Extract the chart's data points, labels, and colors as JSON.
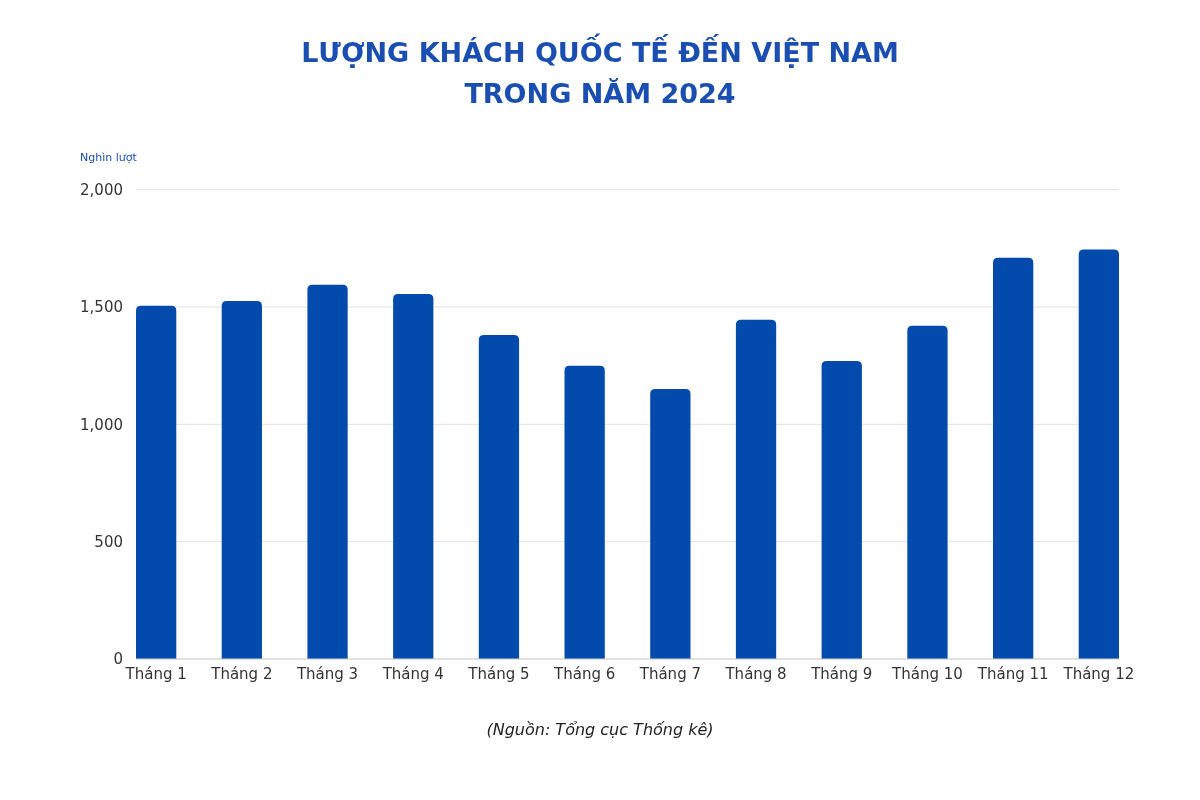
{
  "chart_data": {
    "type": "bar",
    "title": "LƯỢNG KHÁCH QUỐC TẾ ĐẾN VIỆT NAM TRONG NĂM 2024",
    "ylabel": "Nghìn lượt",
    "categories": [
      "Tháng 1",
      "Tháng 2",
      "Tháng 3",
      "Tháng 4",
      "Tháng 5",
      "Tháng 6",
      "Tháng 7",
      "Tháng 8",
      "Tháng 9",
      "Tháng 10",
      "Tháng 11",
      "Tháng 12"
    ],
    "values": [
      1505,
      1525,
      1595,
      1555,
      1380,
      1250,
      1150,
      1445,
      1270,
      1420,
      1710,
      1745
    ],
    "color": "#034aad",
    "ylim": [
      0,
      2000
    ],
    "yticks": [
      0,
      500,
      {
        "value": 1000,
        "label": "1,000"
      },
      {
        "value": 1500,
        "label": "1,500"
      },
      {
        "value": 2000,
        "label": "2,000"
      }
    ],
    "grid": "y",
    "annotations": [
      "(Nguồn: Tổng cục Thống kê)"
    ]
  }
}
